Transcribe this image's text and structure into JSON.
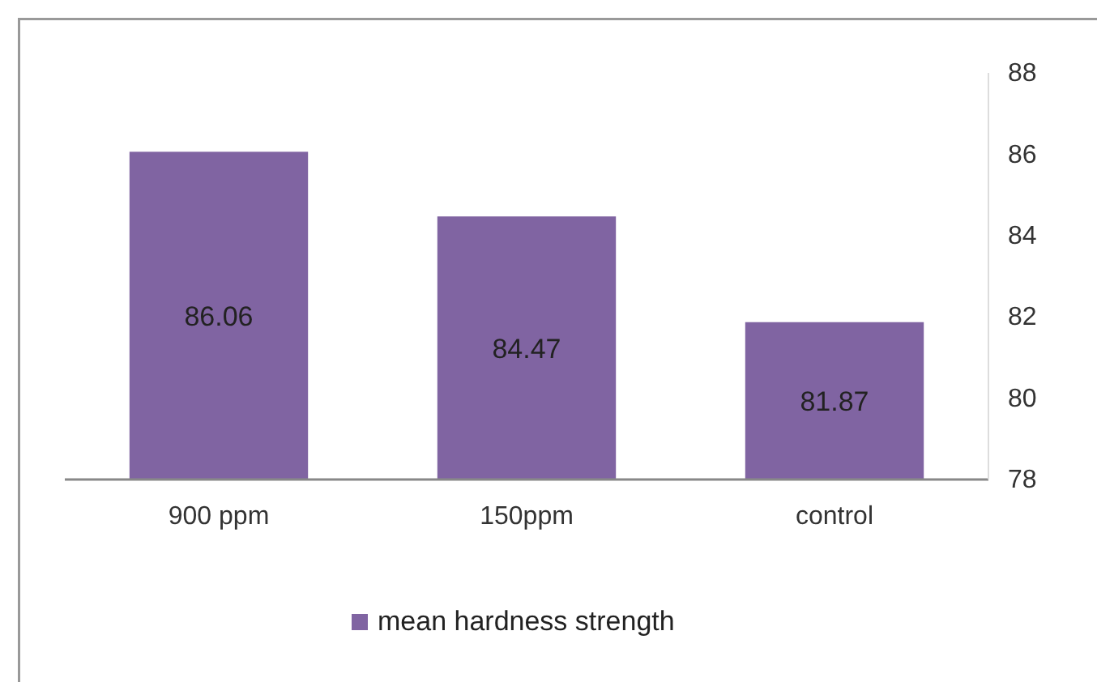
{
  "chart_data": {
    "type": "bar",
    "categories": [
      "900 ppm",
      "150ppm",
      "control"
    ],
    "series": [
      {
        "name": "mean hardness strength",
        "color": "#8064a2",
        "values": [
          86.06,
          84.47,
          81.87
        ]
      }
    ],
    "ylim": [
      78,
      88
    ],
    "yticks": [
      78,
      80,
      82,
      84,
      86,
      88
    ],
    "grid": false,
    "legend": "bottom",
    "data_labels": true
  }
}
